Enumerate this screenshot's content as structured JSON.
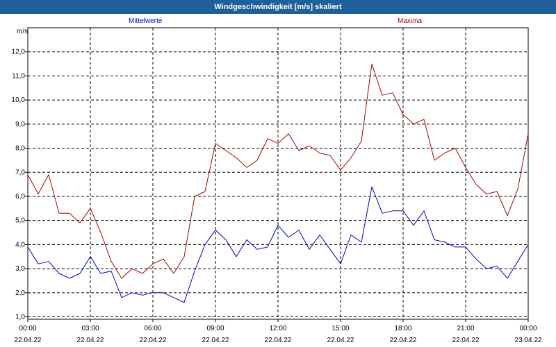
{
  "title": "Windgeschwindigkeit [m/s] skaliert",
  "colors": {
    "titlebar": "#1f5f9a",
    "mittel": "#0000cc",
    "maxima": "#aa0000",
    "grid": "#000000"
  },
  "chart_data": {
    "type": "line",
    "title": "Windgeschwindigkeit [m/s] skaliert",
    "ylabel": "m/s",
    "ylim": [
      0.9,
      13.0
    ],
    "xlim_hours": [
      0,
      24
    ],
    "y_ticks": [
      "1,0",
      "2,0",
      "3,0",
      "4,0",
      "5,0",
      "6,0",
      "7,0",
      "8,0",
      "9,0",
      "10,0",
      "11,0",
      "12,0"
    ],
    "x_ticks": [
      {
        "time": "00:00",
        "date": "22.04.22"
      },
      {
        "time": "03:00",
        "date": "22.04.22"
      },
      {
        "time": "06:00",
        "date": "22.04.22"
      },
      {
        "time": "09:00",
        "date": "22.04.22"
      },
      {
        "time": "12:00",
        "date": "22.04.22"
      },
      {
        "time": "15:00",
        "date": "22.04.22"
      },
      {
        "time": "18:00",
        "date": "22.04.22"
      },
      {
        "time": "21:00",
        "date": "22.04.22"
      },
      {
        "time": "00:00",
        "date": "23.04.22"
      }
    ],
    "grid": true,
    "legend": "top",
    "series": [
      {
        "name": "Mittelwerte",
        "color": "#0000cc",
        "x_hours": [
          0,
          0.5,
          1,
          1.5,
          2,
          2.5,
          3,
          3.5,
          4,
          4.5,
          5,
          5.5,
          6,
          6.5,
          7,
          7.5,
          8,
          8.5,
          9,
          9.5,
          10,
          10.5,
          11,
          11.5,
          12,
          12.5,
          13,
          13.5,
          14,
          14.5,
          15,
          15.5,
          16,
          16.5,
          17,
          17.5,
          18,
          18.5,
          19,
          19.5,
          20,
          20.5,
          21,
          21.5,
          22,
          22.5,
          23,
          23.5,
          24
        ],
        "values": [
          3.9,
          3.2,
          3.3,
          2.8,
          2.6,
          2.8,
          3.5,
          2.8,
          2.9,
          1.8,
          2.0,
          1.9,
          2.0,
          2.0,
          1.8,
          1.6,
          2.9,
          4.0,
          4.6,
          4.2,
          3.5,
          4.2,
          3.8,
          3.9,
          4.8,
          4.3,
          4.6,
          3.8,
          4.4,
          3.8,
          3.2,
          4.4,
          4.1,
          6.4,
          5.3,
          5.4,
          5.4,
          4.8,
          5.4,
          4.2,
          4.1,
          3.9,
          3.9,
          3.4,
          3.0,
          3.1,
          2.6,
          3.3,
          4.0
        ]
      },
      {
        "name": "Maxima",
        "color": "#aa0000",
        "x_hours": [
          0,
          0.5,
          1,
          1.5,
          2,
          2.5,
          3,
          3.5,
          4,
          4.5,
          5,
          5.5,
          6,
          6.5,
          7,
          7.5,
          8,
          8.5,
          9,
          9.5,
          10,
          10.5,
          11,
          11.5,
          12,
          12.5,
          13,
          13.5,
          14,
          14.5,
          15,
          15.5,
          16,
          16.5,
          17,
          17.5,
          18,
          18.5,
          19,
          19.5,
          20,
          20.5,
          21,
          21.5,
          22,
          22.5,
          23,
          23.5,
          24
        ],
        "values": [
          6.9,
          6.1,
          6.9,
          5.3,
          5.3,
          4.9,
          5.5,
          4.5,
          3.3,
          2.6,
          3.0,
          2.8,
          3.2,
          3.4,
          2.8,
          3.5,
          6.0,
          6.2,
          8.2,
          7.9,
          7.6,
          7.2,
          7.5,
          8.4,
          8.2,
          8.6,
          7.9,
          8.1,
          7.8,
          7.7,
          7.1,
          7.6,
          8.3,
          11.5,
          10.2,
          10.3,
          9.4,
          9.0,
          9.2,
          7.5,
          7.8,
          8.0,
          7.2,
          6.5,
          6.1,
          6.2,
          5.2,
          6.3,
          8.6
        ]
      }
    ]
  }
}
